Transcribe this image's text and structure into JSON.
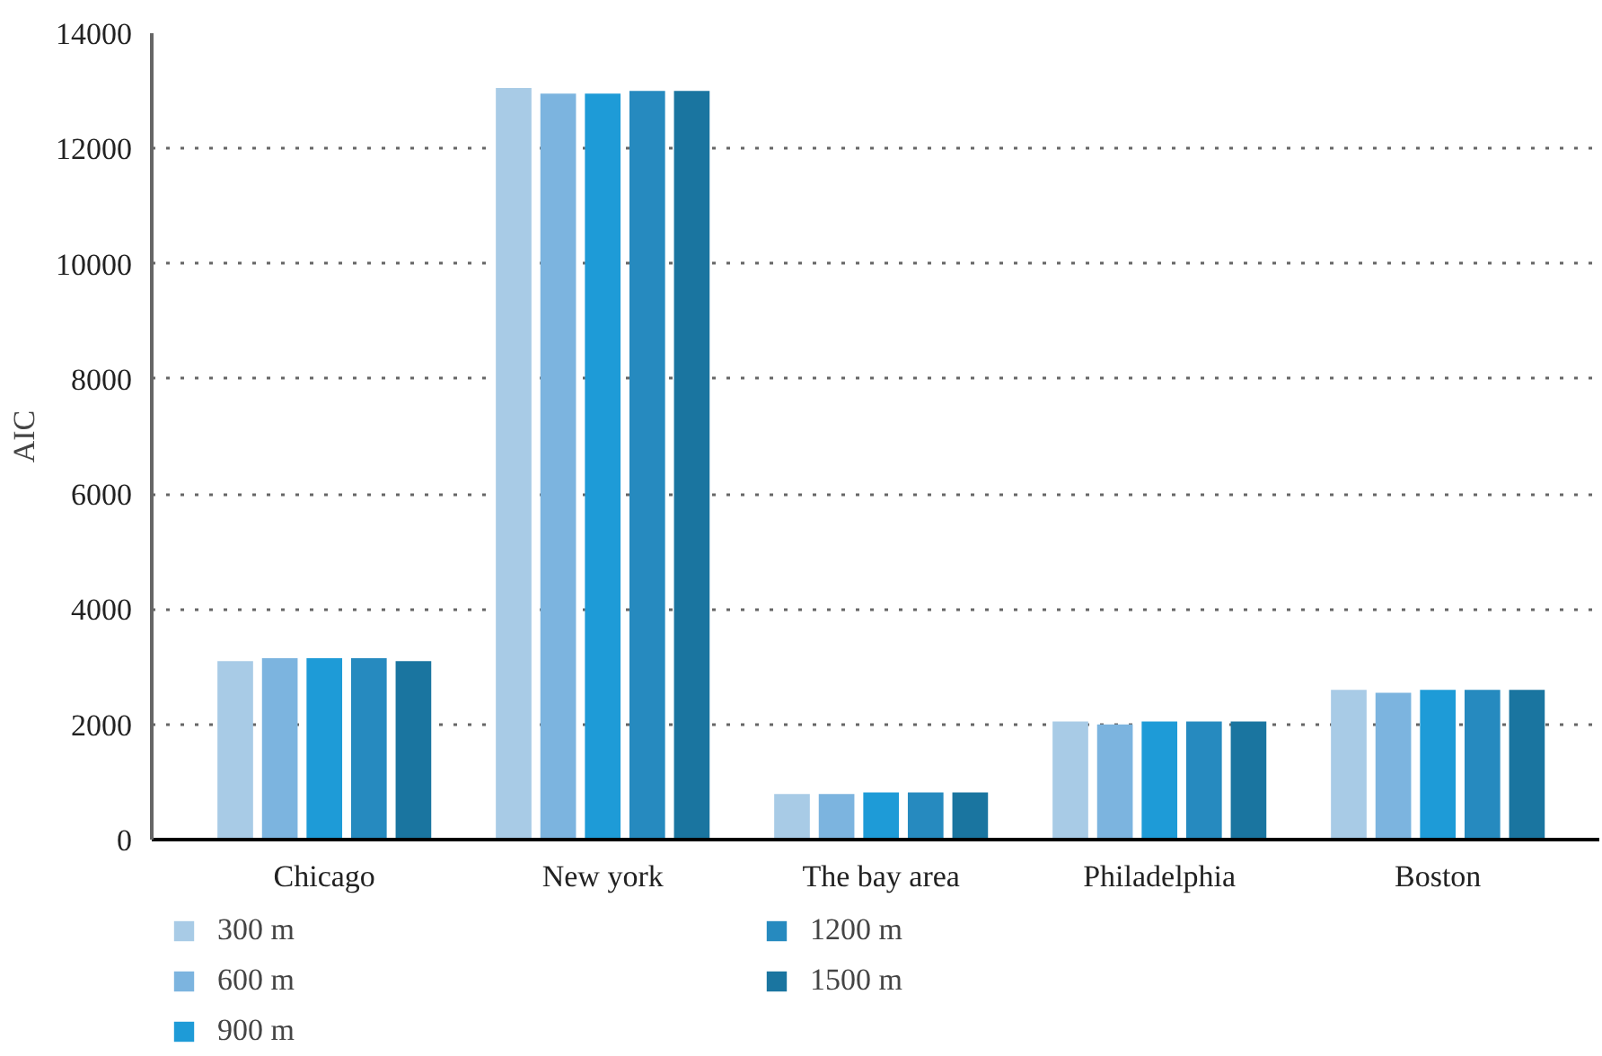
{
  "chart_data": {
    "type": "bar",
    "ylabel": "AIC",
    "categories": [
      "Chicago",
      "New york",
      "The bay area",
      "Philadelphia",
      "Boston"
    ],
    "series": [
      {
        "name": "300 m",
        "color": "#a8cbe6",
        "values": [
          3100,
          13050,
          790,
          2050,
          2600
        ]
      },
      {
        "name": "600 m",
        "color": "#7cb4df",
        "values": [
          3150,
          12950,
          790,
          2000,
          2550
        ]
      },
      {
        "name": "900 m",
        "color": "#1e9bd7",
        "values": [
          3150,
          12950,
          820,
          2050,
          2600
        ]
      },
      {
        "name": "1200 m",
        "color": "#268abf",
        "values": [
          3150,
          13000,
          820,
          2050,
          2600
        ]
      },
      {
        "name": "1500 m",
        "color": "#1a75a0",
        "values": [
          3100,
          13000,
          820,
          2050,
          2600
        ]
      }
    ],
    "ylim": [
      0,
      14000
    ],
    "yticks": [
      0,
      2000,
      4000,
      6000,
      8000,
      10000,
      12000,
      14000
    ],
    "grid": "y",
    "legend": "bottom left"
  }
}
